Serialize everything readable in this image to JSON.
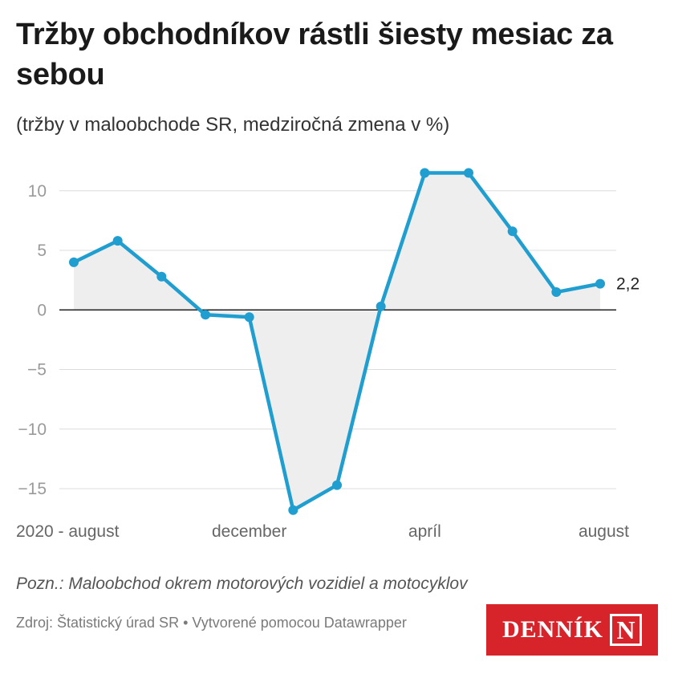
{
  "header": {
    "title": "Tržby obchodníkov rástli šiesty mesiac za sebou",
    "subtitle": "(tržby v maloobchode SR, medziročná zmena v %)"
  },
  "chart_data": {
    "type": "area",
    "ylim": [
      -17,
      12
    ],
    "yticks": [
      10,
      5,
      0,
      -5,
      -10,
      -15
    ],
    "ytick_labels": [
      "10",
      "5",
      "0",
      "−5",
      "−10",
      "−15"
    ],
    "x_tick_labels": [
      {
        "index": 0,
        "label": "2020 - august"
      },
      {
        "index": 4,
        "label": "december"
      },
      {
        "index": 8,
        "label": "apríl"
      },
      {
        "index": 12,
        "label": "august"
      }
    ],
    "series": [
      {
        "values": [
          4.0,
          5.8,
          2.8,
          -0.4,
          -0.6,
          -16.8,
          -14.7,
          0.3,
          11.5,
          11.5,
          6.6,
          1.5,
          2.2
        ],
        "color": "#1f9ecf",
        "fill": "#eeeeee"
      }
    ],
    "last_value_label": "2,2",
    "grid": true,
    "legend": "none"
  },
  "footer": {
    "note": "Pozn.: Maloobchod okrem motorových vozidiel a motocyklov",
    "source": "Zdroj: Štatistický úrad SR • Vytvorené pomocou Datawrapper",
    "logo_text": "DENNÍK",
    "logo_mark": "N"
  },
  "colors": {
    "line": "#1f9ecf",
    "area": "#eeeeee",
    "logo_bg": "#d7242a"
  }
}
